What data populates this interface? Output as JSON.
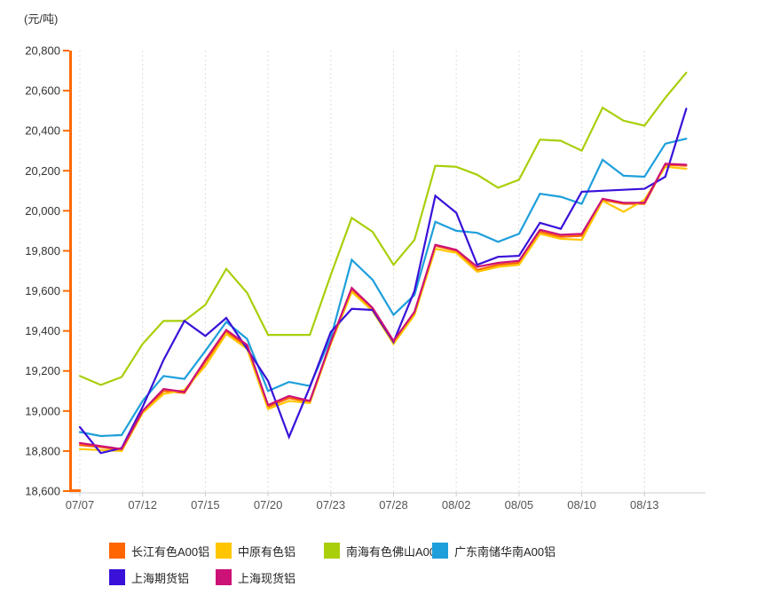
{
  "axis": {
    "unit_label": "(元/吨)"
  },
  "colors": {
    "axis_bar": "#FF6A00",
    "grid_line": "#DDDDDD",
    "x_axis_line": "#CCCCCC",
    "y_tick_text": "#333333",
    "x_tick_text": "#555555",
    "background": "#FFFFFF"
  },
  "chart_data": {
    "type": "line",
    "title": "",
    "ylabel": "(元/吨)",
    "xlabel": "",
    "ylim": [
      18600,
      20800
    ],
    "y_tick_step": 200,
    "grid": "vertical-dashed-only",
    "legend_position": "bottom",
    "y_tick_labels": [
      "20,800",
      "20,600",
      "20,400",
      "20,200",
      "20,000",
      "19,800",
      "19,600",
      "19,400",
      "19,200",
      "19,000",
      "18,800",
      "18,600"
    ],
    "x": [
      "07/07",
      "07/08",
      "07/09",
      "07/12",
      "07/13",
      "07/14",
      "07/15",
      "07/16",
      "07/19",
      "07/20",
      "07/21",
      "07/22",
      "07/23",
      "07/26",
      "07/27",
      "07/28",
      "07/29",
      "07/30",
      "08/02",
      "08/03",
      "08/04",
      "08/05",
      "08/06",
      "08/09",
      "08/10",
      "08/11",
      "08/12",
      "08/13",
      "08/16",
      "08/17"
    ],
    "x_axis_label_indices": [
      0,
      3,
      6,
      9,
      12,
      15,
      18,
      21,
      24,
      27
    ],
    "series": [
      {
        "id": "changjiang-a00",
        "name": "长江有色A00铝",
        "color": "#FF6600",
        "values": [
          18830,
          18820,
          18805,
          18995,
          19100,
          19090,
          19245,
          19395,
          19320,
          19020,
          19065,
          19045,
          19340,
          19605,
          19510,
          19345,
          19490,
          19825,
          19800,
          19705,
          19730,
          19740,
          19895,
          19870,
          19875,
          20055,
          20035,
          20035,
          20230,
          20225
        ]
      },
      {
        "id": "zhongyuan",
        "name": "中原有色铝",
        "color": "#FFC600",
        "values": [
          18810,
          18805,
          18800,
          18990,
          19085,
          19105,
          19225,
          19385,
          19310,
          19010,
          19050,
          19040,
          19335,
          19595,
          19500,
          19335,
          19480,
          19810,
          19790,
          19695,
          19720,
          19730,
          19885,
          19860,
          19855,
          20050,
          19995,
          20055,
          20220,
          20210
        ]
      },
      {
        "id": "nanhai-foshan-a00",
        "name": "南海有色佛山A00铝",
        "color": "#A8CF0A",
        "values": [
          19175,
          19130,
          19170,
          19335,
          19450,
          19450,
          19530,
          19710,
          19590,
          19380,
          19380,
          19380,
          19680,
          19965,
          19895,
          19730,
          19855,
          20225,
          20220,
          20180,
          20115,
          20155,
          20355,
          20350,
          20300,
          20515,
          20450,
          20425,
          20565,
          20690
        ]
      },
      {
        "id": "guangdong-nanchu-a00",
        "name": "广东南储华南A00铝",
        "color": "#1E9FDB",
        "values": [
          18895,
          18875,
          18880,
          19050,
          19175,
          19160,
          19300,
          19445,
          19360,
          19100,
          19145,
          19125,
          19365,
          19755,
          19655,
          19480,
          19580,
          19945,
          19900,
          19890,
          19845,
          19885,
          20085,
          20070,
          20035,
          20255,
          20175,
          20170,
          20335,
          20360
        ]
      },
      {
        "id": "shanghai-futures",
        "name": "上海期货铝",
        "color": "#3911D9",
        "values": [
          18920,
          18790,
          18815,
          19020,
          19255,
          19450,
          19375,
          19465,
          19310,
          19150,
          18870,
          19120,
          19395,
          19510,
          19505,
          19345,
          19600,
          20075,
          19990,
          19730,
          19770,
          19775,
          19940,
          19910,
          20095,
          20100,
          20105,
          20110,
          20170,
          20510
        ]
      },
      {
        "id": "shanghai-spot",
        "name": "上海现货铝",
        "color": "#CC1177",
        "values": [
          18840,
          18825,
          18810,
          19000,
          19110,
          19095,
          19255,
          19405,
          19330,
          19030,
          19075,
          19050,
          19345,
          19615,
          19515,
          19350,
          19495,
          19830,
          19805,
          19720,
          19740,
          19750,
          19905,
          19880,
          19885,
          20060,
          20040,
          20040,
          20235,
          20230
        ]
      }
    ]
  },
  "legend": {
    "items": [
      {
        "label": "长江有色A00铝"
      },
      {
        "label": "中原有色铝"
      },
      {
        "label": "南海有色佛山A00铝"
      },
      {
        "label": "广东南储华南A00铝"
      },
      {
        "label": "上海期货铝"
      },
      {
        "label": "上海现货铝"
      }
    ]
  }
}
